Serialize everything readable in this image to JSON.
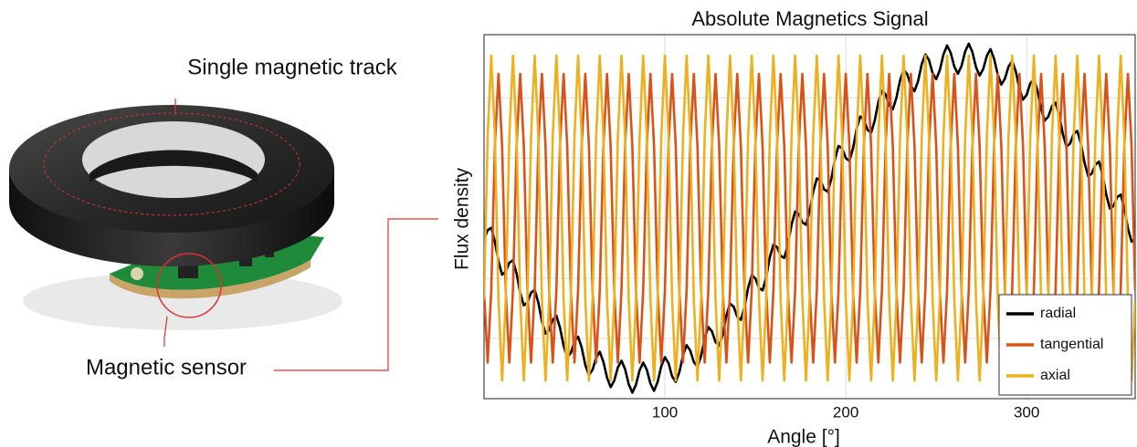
{
  "illustration": {
    "labels": [
      "Single magnetic track",
      "Magnetic sensor"
    ]
  },
  "chart_data": {
    "type": "line",
    "title": "Absolute Magnetics Signal",
    "x_label": "Angle [°]",
    "y_label": "Flux density",
    "xlim": [
      0,
      360
    ],
    "xticks": [
      100,
      200,
      300
    ],
    "ylim": [
      -3,
      3.05
    ],
    "yticks": [
      -2,
      -1,
      0,
      1,
      2
    ],
    "grid": true,
    "legend": "lower right",
    "x": [
      0,
      2,
      4,
      6,
      8,
      10,
      12,
      14,
      16,
      18,
      20,
      22,
      24,
      26,
      28,
      30,
      32,
      34,
      36,
      38,
      40,
      42,
      44,
      46,
      48,
      50,
      52,
      54,
      56,
      58,
      60,
      62,
      64,
      66,
      68,
      70,
      72,
      74,
      76,
      78,
      80,
      82,
      84,
      86,
      88,
      90,
      92,
      94,
      96,
      98,
      100,
      102,
      104,
      106,
      108,
      110,
      112,
      114,
      116,
      118,
      120,
      122,
      124,
      126,
      128,
      130,
      132,
      134,
      136,
      138,
      140,
      142,
      144,
      146,
      148,
      150,
      152,
      154,
      156,
      158,
      160,
      162,
      164,
      166,
      168,
      170,
      172,
      174,
      176,
      178,
      180,
      182,
      184,
      186,
      188,
      190,
      192,
      194,
      196,
      198,
      200,
      202,
      204,
      206,
      208,
      210,
      212,
      214,
      216,
      218,
      220,
      222,
      224,
      226,
      228,
      230,
      232,
      234,
      236,
      238,
      240,
      242,
      244,
      246,
      248,
      250,
      252,
      254,
      256,
      258,
      260,
      262,
      264,
      266,
      268,
      270,
      272,
      274,
      276,
      278,
      280,
      282,
      284,
      286,
      288,
      290,
      292,
      294,
      296,
      298,
      300,
      302,
      304,
      306,
      308,
      310,
      312,
      314,
      316,
      318,
      320,
      322,
      324,
      326,
      328,
      330,
      332,
      334,
      336,
      338,
      340,
      342,
      344,
      346,
      348,
      350,
      352,
      354,
      356,
      358,
      360
    ],
    "series": [
      {
        "name": "radial",
        "color": "#000000",
        "values": [
          -0.35,
          -0.2,
          -0.16,
          -0.39,
          -0.72,
          -0.94,
          -0.89,
          -0.74,
          -0.7,
          -0.92,
          -1.24,
          -1.45,
          -1.4,
          -1.24,
          -1.19,
          -1.4,
          -1.71,
          -1.92,
          -1.86,
          -1.69,
          -1.62,
          -1.82,
          -2.12,
          -2.31,
          -2.24,
          -2.05,
          -1.97,
          -2.15,
          -2.44,
          -2.61,
          -2.52,
          -2.32,
          -2.22,
          -2.39,
          -2.65,
          -2.81,
          -2.7,
          -2.48,
          -2.37,
          -2.51,
          -2.76,
          -2.9,
          -2.77,
          -2.53,
          -2.4,
          -2.52,
          -2.75,
          -2.87,
          -2.72,
          -2.46,
          -2.31,
          -2.41,
          -2.63,
          -2.72,
          -2.56,
          -2.28,
          -2.11,
          -2.2,
          -2.39,
          -2.47,
          -2.29,
          -2.0,
          -1.81,
          -1.88,
          -2.06,
          -2.12,
          -1.93,
          -1.62,
          -1.42,
          -1.47,
          -1.64,
          -1.69,
          -1.48,
          -1.16,
          -0.95,
          -1.0,
          -1.16,
          -1.2,
          -0.98,
          -0.65,
          -0.44,
          -0.48,
          -0.63,
          -0.66,
          -0.44,
          -0.11,
          0.11,
          0.07,
          -0.07,
          -0.11,
          0.11,
          0.44,
          0.66,
          0.63,
          0.48,
          0.44,
          0.65,
          0.98,
          1.2,
          1.16,
          1.0,
          0.95,
          1.16,
          1.48,
          1.69,
          1.64,
          1.47,
          1.42,
          1.62,
          1.93,
          2.12,
          2.06,
          1.88,
          1.81,
          2.0,
          2.29,
          2.47,
          2.39,
          2.2,
          2.11,
          2.28,
          2.56,
          2.72,
          2.63,
          2.41,
          2.31,
          2.46,
          2.72,
          2.87,
          2.75,
          2.52,
          2.4,
          2.53,
          2.77,
          2.9,
          2.76,
          2.51,
          2.37,
          2.48,
          2.7,
          2.81,
          2.65,
          2.39,
          2.22,
          2.32,
          2.52,
          2.61,
          2.44,
          2.15,
          1.97,
          2.05,
          2.24,
          2.31,
          2.12,
          1.82,
          1.62,
          1.69,
          1.86,
          1.92,
          1.71,
          1.4,
          1.19,
          1.24,
          1.4,
          1.45,
          1.24,
          0.92,
          0.7,
          0.74,
          0.89,
          0.94,
          0.72,
          0.39,
          0.16,
          0.2,
          0.35,
          0.39,
          0.17,
          -0.17,
          -0.39,
          -0.35
        ]
      },
      {
        "name": "tangential",
        "color": "#d95319",
        "values": [
          -1.2,
          -2.4,
          -1.2,
          1.2,
          2.4,
          1.2,
          -1.2,
          -2.4,
          -1.2,
          1.2,
          2.4,
          1.2,
          -1.2,
          -2.4,
          -1.2,
          1.2,
          2.4,
          1.2,
          -1.2,
          -2.4,
          -1.2,
          1.2,
          2.4,
          1.2,
          -1.2,
          -2.4,
          -1.2,
          1.2,
          2.4,
          1.2,
          -1.2,
          -2.4,
          -1.2,
          1.2,
          2.4,
          1.2,
          -1.2,
          -2.4,
          -1.2,
          1.2,
          2.4,
          1.2,
          -1.2,
          -2.4,
          -1.2,
          1.2,
          2.4,
          1.2,
          -1.2,
          -2.4,
          -1.2,
          1.2,
          2.4,
          1.2,
          -1.2,
          -2.4,
          -1.2,
          1.2,
          2.4,
          1.2,
          -1.2,
          -2.4,
          -1.2,
          1.2,
          2.4,
          1.2,
          -1.2,
          -2.4,
          -1.2,
          1.2,
          2.4,
          1.2,
          -1.2,
          -2.4,
          -1.2,
          1.2,
          2.4,
          1.2,
          -1.2,
          -2.4,
          -1.2,
          1.2,
          2.4,
          1.2,
          -1.2,
          -2.4,
          -1.2,
          1.2,
          2.4,
          1.2,
          -1.2,
          -2.4,
          -1.2,
          1.2,
          2.4,
          1.2,
          -1.2,
          -2.4,
          -1.2,
          1.2,
          2.4,
          1.2,
          -1.2,
          -2.4,
          -1.2,
          1.2,
          2.4,
          1.2,
          -1.2,
          -2.4,
          -1.2,
          1.2,
          2.4,
          1.2,
          -1.2,
          -2.4,
          -1.2,
          1.2,
          2.4,
          1.2,
          -1.2,
          -2.4,
          -1.2,
          1.2,
          2.4,
          1.2,
          -1.2,
          -2.4,
          -1.2,
          1.2,
          2.4,
          1.2,
          -1.2,
          -2.4,
          -1.2,
          1.2,
          2.4,
          1.2,
          -1.2,
          -2.4,
          -1.2,
          1.2,
          2.4,
          1.2,
          -1.2,
          -2.4,
          -1.2,
          1.2,
          2.4,
          1.2,
          -1.2,
          -2.4,
          -1.2,
          1.2,
          2.4,
          1.2,
          -1.2,
          -2.4,
          -1.2,
          1.2,
          2.4,
          1.2,
          -1.2,
          -2.4,
          -1.2,
          1.2,
          2.4,
          1.2,
          -1.2,
          -2.4,
          -1.2,
          1.2,
          2.4,
          1.2,
          -1.2,
          -2.4,
          -1.2,
          1.2,
          2.4,
          1.2,
          -1.2
        ]
      },
      {
        "name": "axial",
        "color": "#edb120",
        "values": [
          -1.35,
          1.35,
          2.7,
          1.35,
          -1.35,
          -2.7,
          -1.35,
          1.35,
          2.7,
          1.35,
          -1.35,
          -2.7,
          -1.35,
          1.35,
          2.7,
          1.35,
          -1.35,
          -2.7,
          -1.35,
          1.35,
          2.7,
          1.35,
          -1.35,
          -2.7,
          -1.35,
          1.35,
          2.7,
          1.35,
          -1.35,
          -2.7,
          -1.35,
          1.35,
          2.7,
          1.35,
          -1.35,
          -2.7,
          -1.35,
          1.35,
          2.7,
          1.35,
          -1.35,
          -2.7,
          -1.35,
          1.35,
          2.7,
          1.35,
          -1.35,
          -2.7,
          -1.35,
          1.35,
          2.7,
          1.35,
          -1.35,
          -2.7,
          -1.35,
          1.35,
          2.7,
          1.35,
          -1.35,
          -2.7,
          -1.35,
          1.35,
          2.7,
          1.35,
          -1.35,
          -2.7,
          -1.35,
          1.35,
          2.7,
          1.35,
          -1.35,
          -2.7,
          -1.35,
          1.35,
          2.7,
          1.35,
          -1.35,
          -2.7,
          -1.35,
          1.35,
          2.7,
          1.35,
          -1.35,
          -2.7,
          -1.35,
          1.35,
          2.7,
          1.35,
          -1.35,
          -2.7,
          -1.35,
          1.35,
          2.7,
          1.35,
          -1.35,
          -2.7,
          -1.35,
          1.35,
          2.7,
          1.35,
          -1.35,
          -2.7,
          -1.35,
          1.35,
          2.7,
          1.35,
          -1.35,
          -2.7,
          -1.35,
          1.35,
          2.7,
          1.35,
          -1.35,
          -2.7,
          -1.35,
          1.35,
          2.7,
          1.35,
          -1.35,
          -2.7,
          -1.35,
          1.35,
          2.7,
          1.35,
          -1.35,
          -2.7,
          -1.35,
          1.35,
          2.7,
          1.35,
          -1.35,
          -2.7,
          -1.35,
          1.35,
          2.7,
          1.35,
          -1.35,
          -2.7,
          -1.35,
          1.35,
          2.7,
          1.35,
          -1.35,
          -2.7,
          -1.35,
          1.35,
          2.7,
          1.35,
          -1.35,
          -2.7,
          -1.35,
          1.35,
          2.7,
          1.35,
          -1.35,
          -2.7,
          -1.35,
          1.35,
          2.7,
          1.35,
          -1.35,
          -2.7,
          -1.35,
          1.35,
          2.7,
          1.35,
          -1.35,
          -2.7,
          -1.35,
          1.35,
          2.7,
          1.35,
          -1.35,
          -2.7,
          -1.35,
          1.35,
          2.7,
          1.35,
          -1.35,
          -2.7,
          -1.35
        ]
      }
    ]
  }
}
